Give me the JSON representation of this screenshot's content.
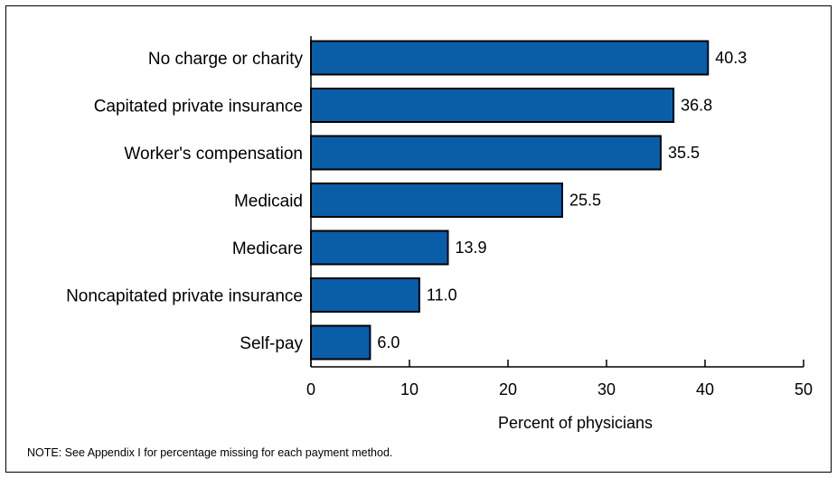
{
  "chart_data": {
    "type": "bar",
    "orientation": "horizontal",
    "categories": [
      "No charge or charity",
      "Capitated private insurance",
      "Worker's compensation",
      "Medicaid",
      "Medicare",
      "Noncapitated private insurance",
      "Self-pay"
    ],
    "values": [
      40.3,
      36.8,
      35.5,
      25.5,
      13.9,
      11.0,
      6.0
    ],
    "value_labels": [
      "40.3",
      "36.8",
      "35.5",
      "25.5",
      "13.9",
      "11.0",
      "6.0"
    ],
    "xlabel": "Percent of physicians",
    "ylabel": "",
    "xlim": [
      0,
      50
    ],
    "xticks": [
      0,
      10,
      20,
      30,
      40,
      50
    ],
    "grid": false,
    "bar_color": "#0a5ea8",
    "bar_edge_color": "#000000"
  },
  "note": "NOTE: See Appendix I for percentage missing for each payment method."
}
